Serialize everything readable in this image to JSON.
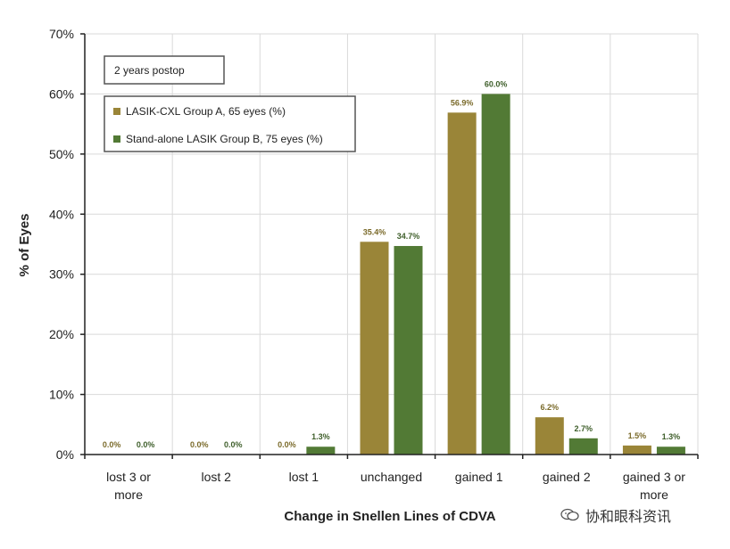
{
  "chart_data": {
    "type": "bar",
    "title": "",
    "xlabel": "Change in Snellen Lines of CDVA",
    "ylabel": "% of Eyes",
    "ylim": [
      0,
      70
    ],
    "yticks": [
      "0%",
      "10%",
      "20%",
      "30%",
      "40%",
      "50%",
      "60%",
      "70%"
    ],
    "ytick_values": [
      0,
      10,
      20,
      30,
      40,
      50,
      60,
      70
    ],
    "grid": true,
    "categories": [
      [
        "lost 3 or",
        "more"
      ],
      [
        "lost 2"
      ],
      [
        "lost 1"
      ],
      [
        "unchanged"
      ],
      [
        "gained 1"
      ],
      [
        "gained 2"
      ],
      [
        "gained 3 or",
        "more"
      ]
    ],
    "series": [
      {
        "name": "LASIK-CXL Group A, 65 eyes  (%)",
        "color": "#9a8538",
        "values": [
          0.0,
          0.0,
          0.0,
          35.4,
          56.9,
          6.2,
          1.5
        ],
        "labels": [
          "0.0%",
          "0.0%",
          "0.0%",
          "35.4%",
          "56.9%",
          "6.2%",
          "1.5%"
        ]
      },
      {
        "name": "Stand-alone LASIK Group B, 75 eyes (%)",
        "color": "#527a35",
        "values": [
          0.0,
          0.0,
          1.3,
          34.7,
          60.0,
          2.7,
          1.3
        ],
        "labels": [
          "0.0%",
          "0.0%",
          "1.3%",
          "34.7%",
          "60.0%",
          "2.7%",
          "1.3%"
        ]
      }
    ],
    "annotation": "2 years postop",
    "legend_position": "top-left"
  },
  "watermark": {
    "text": "协和眼科资讯",
    "icon": "wechat-icon"
  }
}
